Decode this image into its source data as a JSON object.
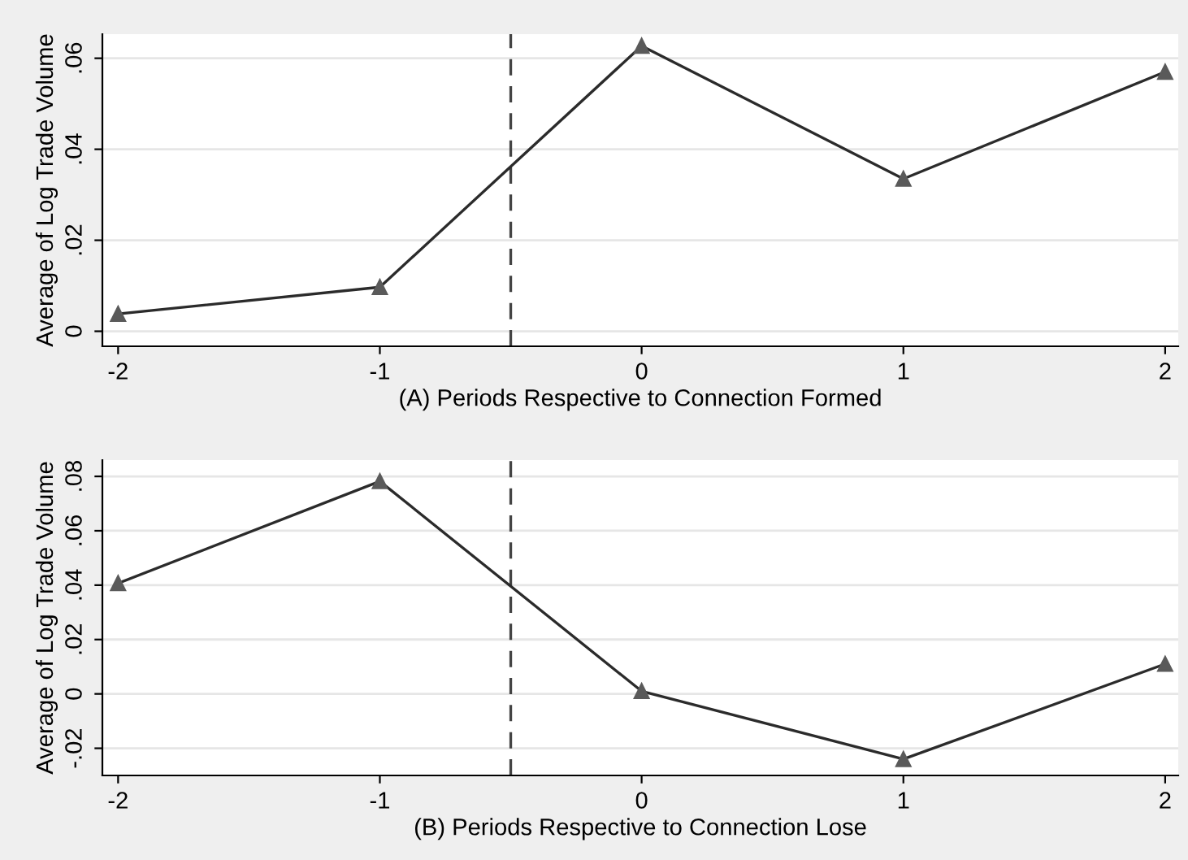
{
  "chart_data": [
    {
      "type": "line",
      "xlabel": "(A) Periods Respective to Connection Formed",
      "ylabel": "Average of Log Trade Volume",
      "x": [
        -2,
        -1,
        0,
        1,
        2
      ],
      "series": [
        {
          "color": "#2b2b2b",
          "values": [
            0.0038,
            0.0097,
            0.0627,
            0.0335,
            0.057
          ]
        }
      ],
      "marker": "triangle",
      "xlim": [
        -2.06,
        2.05
      ],
      "ylim": [
        -0.0033,
        0.0653
      ],
      "xticks": [
        -2,
        -1,
        0,
        1,
        2
      ],
      "yticks": [
        0,
        {
          "value": 0.02,
          "label": ".02"
        },
        {
          "value": 0.04,
          "label": ".04"
        },
        {
          "value": 0.06,
          "label": ".06"
        }
      ],
      "ref_lines": [
        {
          "axis": "x",
          "value": -0.5,
          "color": "#444444",
          "line_style": "dashed"
        }
      ],
      "grid": "y",
      "legend": false
    },
    {
      "type": "line",
      "xlabel": "(B) Periods Respective to Connection Lose",
      "ylabel": "Average of Log Trade Volume",
      "x": [
        -2,
        -1,
        0,
        1,
        2
      ],
      "series": [
        {
          "color": "#2b2b2b",
          "values": [
            0.0407,
            0.0782,
            0.001,
            -0.024,
            0.011
          ]
        }
      ],
      "marker": "triangle",
      "xlim": [
        -2.06,
        2.05
      ],
      "ylim": [
        -0.03,
        0.086
      ],
      "xticks": [
        -2,
        -1,
        0,
        1,
        2
      ],
      "yticks": [
        {
          "value": -0.02,
          "label": "-.02"
        },
        0,
        {
          "value": 0.02,
          "label": ".02"
        },
        {
          "value": 0.04,
          "label": ".04"
        },
        {
          "value": 0.06,
          "label": ".06"
        },
        {
          "value": 0.08,
          "label": ".08"
        }
      ],
      "ref_lines": [
        {
          "axis": "x",
          "value": -0.5,
          "color": "#444444",
          "line_style": "dashed"
        }
      ],
      "grid": "y",
      "legend": false
    }
  ]
}
